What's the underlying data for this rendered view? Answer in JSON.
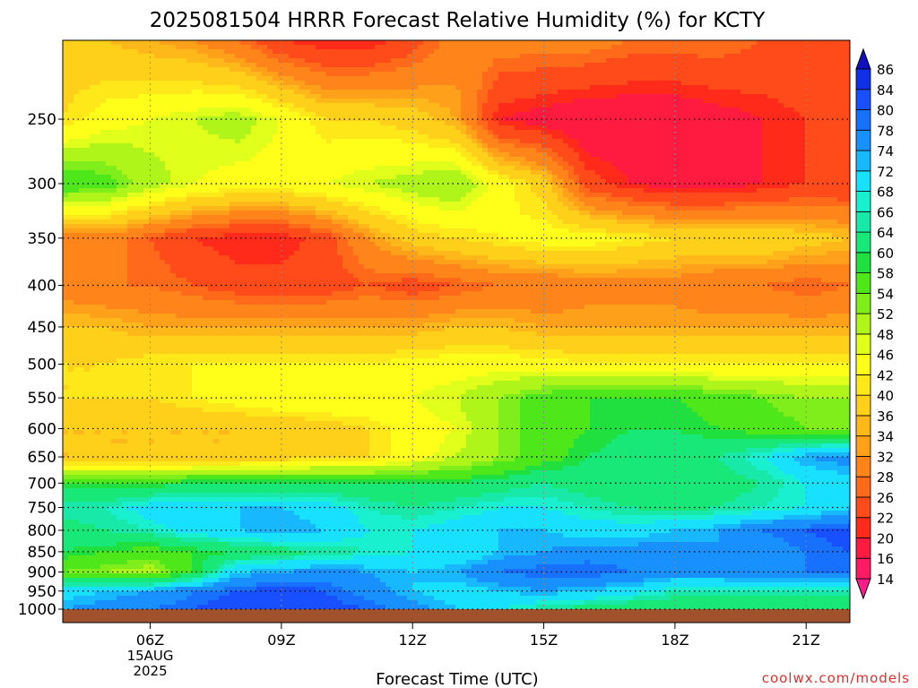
{
  "title": "2025081504 HRRR Forecast Relative Humidity (%) for KCTY",
  "watermark": "coolwx.com/models",
  "chart_data": {
    "type": "heatmap",
    "title": "2025081504 HRRR Forecast Relative Humidity (%) for KCTY",
    "xlabel": "Forecast Time (UTC)",
    "ylabel": "",
    "x_ticks": [
      {
        "hour": 6,
        "label": "06Z",
        "sub": [
          "15AUG",
          "2025"
        ]
      },
      {
        "hour": 9,
        "label": "09Z",
        "sub": []
      },
      {
        "hour": 12,
        "label": "12Z",
        "sub": []
      },
      {
        "hour": 15,
        "label": "15Z",
        "sub": []
      },
      {
        "hour": 18,
        "label": "18Z",
        "sub": []
      },
      {
        "hour": 21,
        "label": "21Z",
        "sub": []
      }
    ],
    "xlim": [
      4,
      22
    ],
    "y_ticks": [
      250,
      300,
      350,
      400,
      450,
      500,
      550,
      600,
      650,
      700,
      750,
      800,
      850,
      900,
      950,
      1000
    ],
    "ylim": [
      200,
      1010
    ],
    "ylog": true,
    "grid": true,
    "colorbar_levels": [
      14,
      16,
      20,
      22,
      26,
      28,
      32,
      34,
      36,
      40,
      42,
      46,
      48,
      52,
      54,
      58,
      60,
      64,
      66,
      68,
      72,
      74,
      78,
      80,
      84,
      86
    ],
    "colorbar_colors": [
      "#ff1a8c",
      "#ff1a66",
      "#ff1a40",
      "#ff2a1a",
      "#ff4a1a",
      "#ff6a1a",
      "#ff851a",
      "#ffa01a",
      "#ffb81a",
      "#ffd01a",
      "#ffe81a",
      "#ffff1a",
      "#e0ff1a",
      "#b0f51a",
      "#80ee1a",
      "#4ee81a",
      "#20e040",
      "#18e878",
      "#18e8a8",
      "#18f0d0",
      "#18e0ff",
      "#18b8ff",
      "#1890ff",
      "#1870ff",
      "#1850ff",
      "#1030e8",
      "#1010c0"
    ],
    "hours": [
      4,
      5,
      6,
      7,
      8,
      9,
      10,
      11,
      12,
      13,
      14,
      15,
      16,
      17,
      18,
      19,
      20,
      21,
      22
    ],
    "pressure_levels": [
      200,
      250,
      300,
      350,
      400,
      450,
      500,
      550,
      600,
      650,
      700,
      750,
      800,
      850,
      900,
      950,
      1000
    ],
    "values": [
      [
        38,
        36,
        34,
        32,
        28,
        22,
        20,
        20,
        24,
        30,
        30,
        30,
        30,
        28,
        28,
        28,
        26,
        26,
        26
      ],
      [
        40,
        44,
        46,
        48,
        50,
        46,
        40,
        40,
        38,
        34,
        20,
        18,
        16,
        16,
        16,
        18,
        20,
        22,
        24
      ],
      [
        58,
        56,
        50,
        46,
        44,
        44,
        46,
        48,
        50,
        52,
        44,
        38,
        24,
        20,
        18,
        18,
        20,
        22,
        22
      ],
      [
        28,
        30,
        26,
        22,
        20,
        20,
        24,
        32,
        38,
        40,
        42,
        44,
        44,
        42,
        40,
        40,
        40,
        38,
        36
      ],
      [
        30,
        28,
        28,
        26,
        24,
        24,
        24,
        26,
        24,
        26,
        28,
        28,
        30,
        30,
        30,
        28,
        28,
        26,
        28
      ],
      [
        36,
        36,
        34,
        34,
        34,
        34,
        34,
        34,
        34,
        36,
        36,
        34,
        34,
        34,
        34,
        34,
        34,
        34,
        34
      ],
      [
        40,
        40,
        42,
        42,
        42,
        42,
        42,
        42,
        44,
        44,
        44,
        44,
        42,
        42,
        42,
        42,
        42,
        42,
        42
      ],
      [
        40,
        40,
        40,
        42,
        44,
        46,
        46,
        46,
        46,
        48,
        52,
        56,
        58,
        58,
        58,
        56,
        54,
        52,
        52
      ],
      [
        36,
        36,
        36,
        36,
        36,
        36,
        38,
        40,
        44,
        46,
        52,
        56,
        58,
        60,
        60,
        58,
        56,
        54,
        52
      ],
      [
        36,
        36,
        36,
        36,
        36,
        38,
        40,
        40,
        44,
        48,
        52,
        56,
        60,
        62,
        62,
        64,
        68,
        74,
        76
      ],
      [
        58,
        58,
        58,
        60,
        60,
        60,
        60,
        60,
        60,
        60,
        62,
        64,
        62,
        60,
        60,
        62,
        64,
        68,
        70
      ],
      [
        66,
        66,
        70,
        72,
        72,
        72,
        70,
        66,
        64,
        66,
        68,
        68,
        66,
        64,
        62,
        64,
        66,
        68,
        72
      ],
      [
        62,
        64,
        66,
        70,
        72,
        74,
        72,
        68,
        68,
        70,
        72,
        72,
        70,
        70,
        72,
        74,
        78,
        80,
        82
      ],
      [
        60,
        58,
        56,
        58,
        60,
        62,
        64,
        66,
        68,
        68,
        72,
        74,
        76,
        76,
        76,
        74,
        76,
        78,
        80
      ],
      [
        54,
        52,
        50,
        58,
        72,
        74,
        76,
        74,
        72,
        74,
        78,
        80,
        80,
        78,
        76,
        76,
        78,
        78,
        78
      ],
      [
        70,
        72,
        74,
        78,
        80,
        82,
        80,
        76,
        72,
        70,
        72,
        74,
        72,
        70,
        66,
        66,
        66,
        66,
        66
      ],
      [
        74,
        76,
        78,
        80,
        82,
        84,
        82,
        80,
        76,
        72,
        68,
        64,
        62,
        60,
        60,
        60,
        60,
        60,
        60
      ]
    ]
  }
}
